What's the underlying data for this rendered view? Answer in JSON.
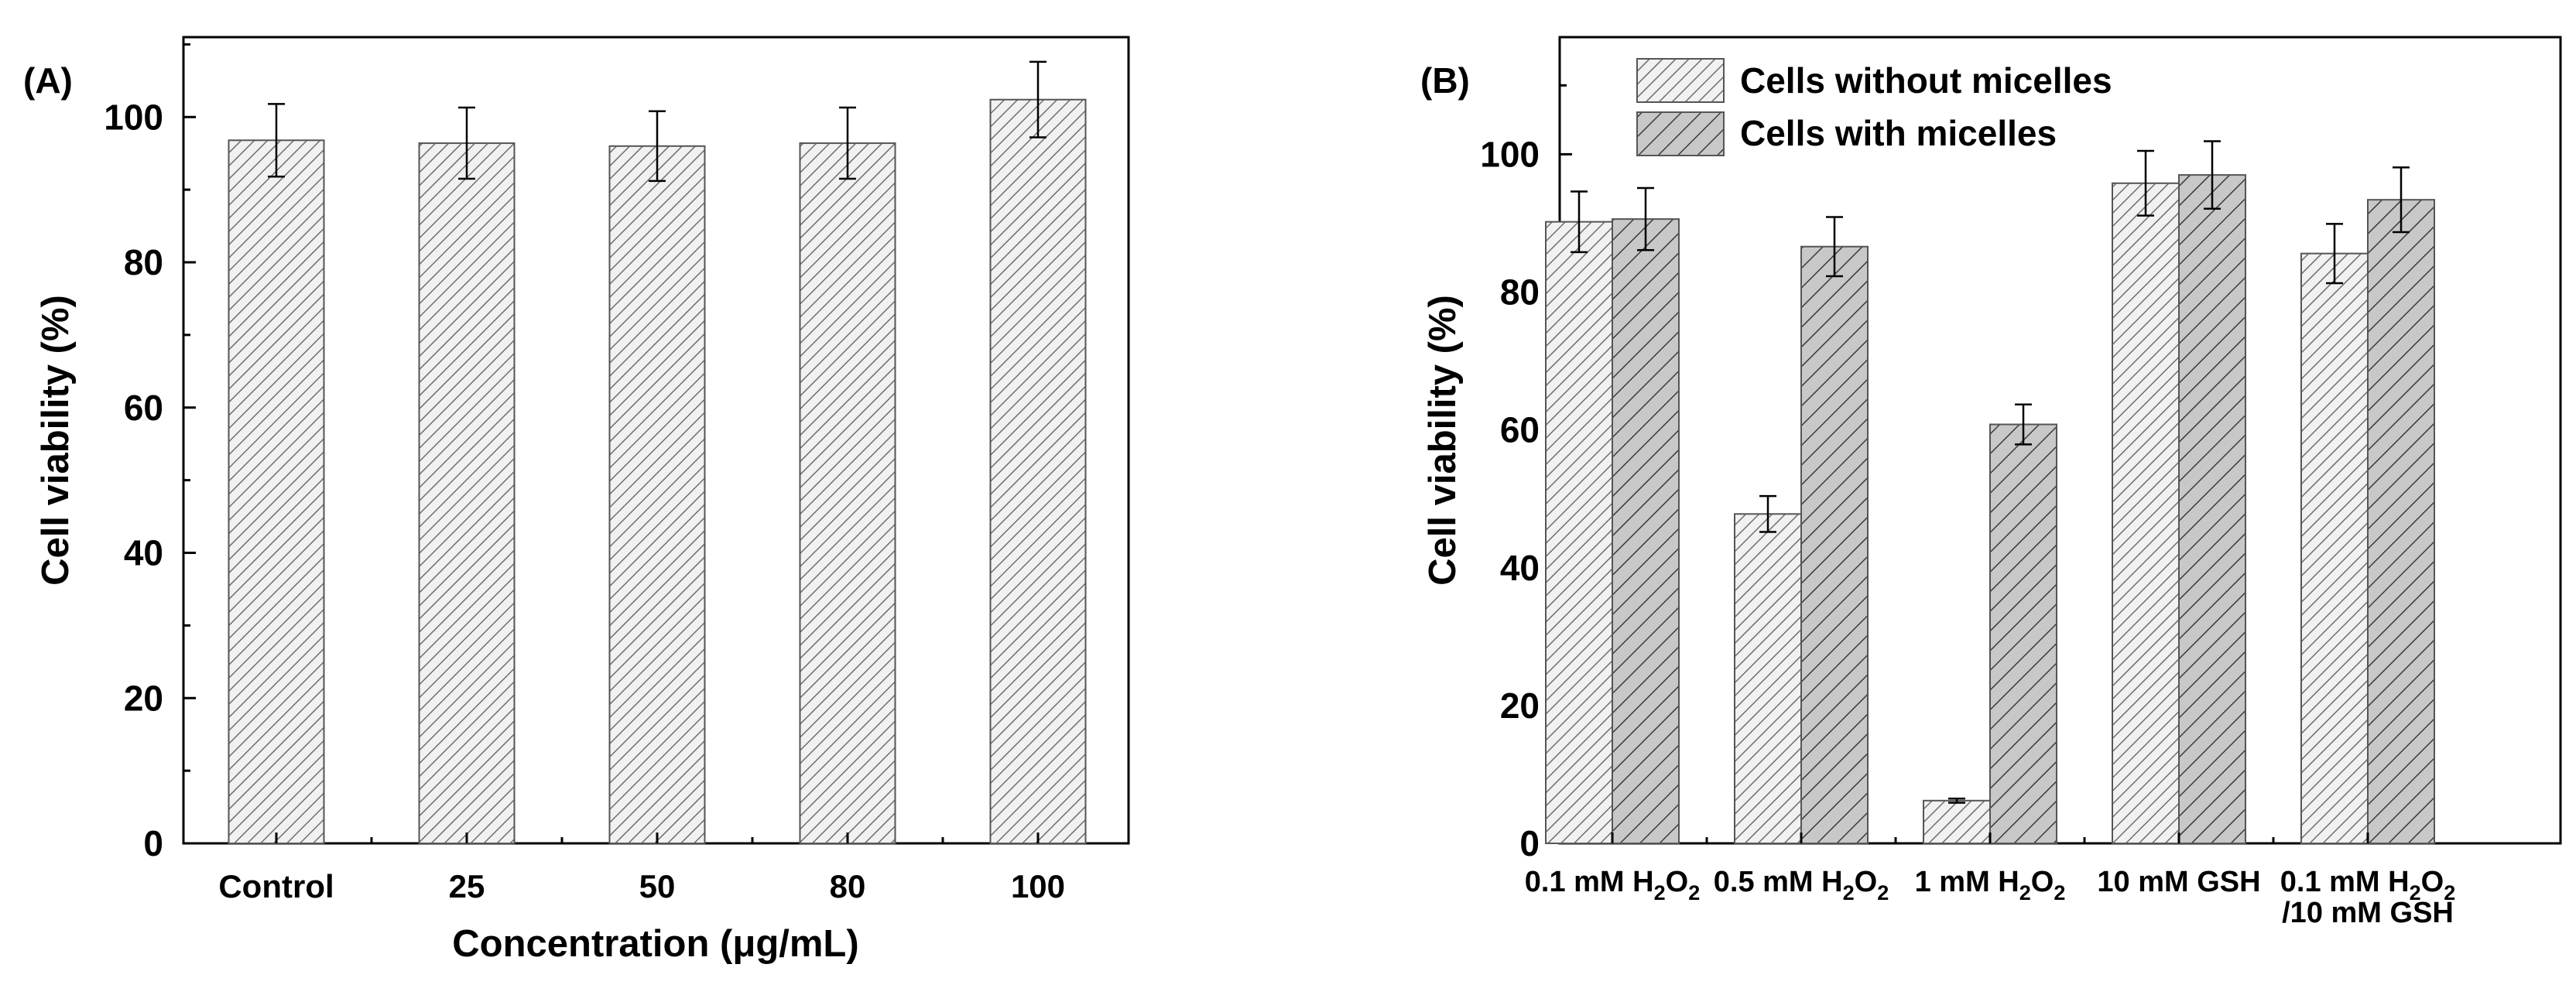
{
  "chart_data": [
    {
      "panel_label": "(A)",
      "type": "bar",
      "categories": [
        "Control",
        "25",
        "50",
        "80",
        "100"
      ],
      "series": [
        {
          "name": "Cell viability",
          "values": [
            96.8,
            96.4,
            96.0,
            96.4,
            102.4
          ],
          "errors": [
            5.0,
            4.9,
            4.8,
            4.9,
            5.2
          ],
          "fill": "light-hatch"
        }
      ],
      "xlabel": "Concentration (μg/mL)",
      "ylabel": "Cell viability (%)",
      "ylim": [
        0,
        111
      ],
      "yticks": [
        "0",
        "20",
        "40",
        "60",
        "80",
        "100"
      ],
      "grid": false
    },
    {
      "panel_label": "(B)",
      "type": "bar",
      "categories": [
        [
          "0.1 mM H",
          "2",
          "O",
          "2"
        ],
        [
          "0.5 mM H",
          "2",
          "O",
          "2"
        ],
        [
          "1 mM H",
          "2",
          "O",
          "2"
        ],
        [
          "10 mM GSH"
        ],
        [
          "0.1 mM H",
          "2",
          "O",
          "2"
        ]
      ],
      "category_second_lines": [
        "",
        "",
        "",
        "",
        "/10 mM GSH"
      ],
      "series": [
        {
          "name": "Cells without micelles",
          "values": [
            90.2,
            47.8,
            6.2,
            95.8,
            85.6
          ],
          "errors": [
            4.4,
            2.6,
            0.3,
            4.7,
            4.3
          ],
          "fill": "light-hatch"
        },
        {
          "name": "Cells with micelles",
          "values": [
            90.6,
            86.6,
            60.8,
            97.0,
            93.4
          ],
          "errors": [
            4.5,
            4.3,
            2.9,
            4.9,
            4.7
          ],
          "fill": "dark-hatch"
        }
      ],
      "xlabel": "",
      "ylabel": "Cell viability (%)",
      "ylim": [
        0,
        117
      ],
      "yticks": [
        "0",
        "20",
        "40",
        "60",
        "80",
        "100"
      ],
      "legend_position": "top-left",
      "grid": false
    }
  ],
  "colors": {
    "axis": "#000000",
    "bar_light": "#f1f1f1",
    "bar_dark": "#c8c8c8",
    "hatch_light": "#6e6e6e",
    "hatch_dark": "#3a3a3a",
    "bar_edge": "#555555"
  }
}
